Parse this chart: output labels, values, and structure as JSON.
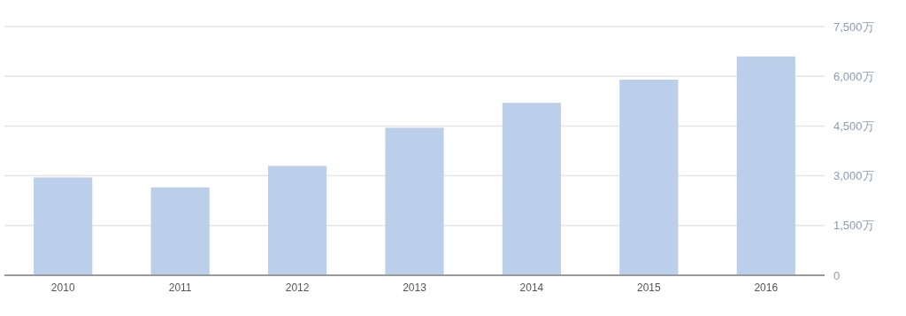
{
  "chart_data": {
    "type": "bar",
    "categories": [
      "2010",
      "2011",
      "2012",
      "2013",
      "2014",
      "2015",
      "2016"
    ],
    "values": [
      2950,
      2650,
      3300,
      4450,
      5200,
      5900,
      6600
    ],
    "color": "#bccfea",
    "ylim": [
      0,
      7500
    ],
    "yticks": [
      0,
      {
        "value": 1500,
        "label": "1,500万"
      },
      {
        "value": 3000,
        "label": "3,000万"
      },
      {
        "value": 4500,
        "label": "4,500万"
      },
      {
        "value": 6000,
        "label": "6,000万"
      },
      {
        "value": 7500,
        "label": "7,500万"
      }
    ],
    "grid": "y"
  }
}
